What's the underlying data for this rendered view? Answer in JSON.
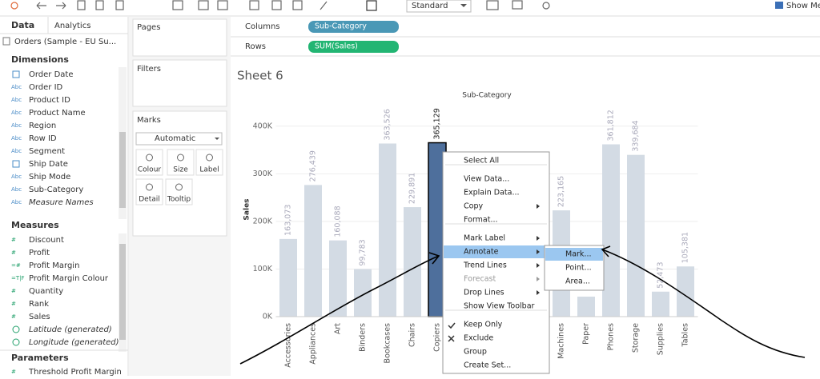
{
  "toolbar": {
    "view_size": "Standard",
    "show_me": "Show Me"
  },
  "sidebar": {
    "tabs": [
      "Data",
      "Analytics"
    ],
    "data_source": "Orders (Sample - EU Su...",
    "dimensions": {
      "title": "Dimensions",
      "fields": [
        {
          "name": "Order Date"
        },
        {
          "icon": "Abc",
          "name": "Order ID"
        },
        {
          "icon": "Abc",
          "name": "Product ID"
        },
        {
          "icon": "Abc",
          "name": "Product Name"
        },
        {
          "icon": "Abc",
          "name": "Region"
        },
        {
          "icon": "Abc",
          "name": "Row ID"
        },
        {
          "icon": "Abc",
          "name": "Segment"
        },
        {
          "name": "Ship Date"
        },
        {
          "icon": "Abc",
          "name": "Ship Mode"
        },
        {
          "icon": "Abc",
          "name": "Sub-Category"
        },
        {
          "icon": "Abc",
          "name": "Measure Names",
          "italic": true
        }
      ]
    },
    "measures": {
      "title": "Measures",
      "fields": [
        {
          "icon": "#",
          "name": "Discount"
        },
        {
          "icon": "#",
          "name": "Profit"
        },
        {
          "icon": "=#",
          "name": "Profit Margin"
        },
        {
          "icon": "=T|F",
          "name": "Profit Margin Colour"
        },
        {
          "icon": "#",
          "name": "Quantity"
        },
        {
          "icon": "#",
          "name": "Rank"
        },
        {
          "icon": "#",
          "name": "Sales"
        },
        {
          "name": "Latitude (generated)",
          "italic": true
        },
        {
          "name": "Longitude (generated)",
          "italic": true
        }
      ]
    },
    "parameters": {
      "title": "Parameters",
      "fields": [
        {
          "icon": "#",
          "name": "Threshold Profit Margin"
        }
      ]
    }
  },
  "cards": {
    "pages": "Pages",
    "filters": "Filters",
    "marks": "Marks",
    "mark_type": "Automatic",
    "buttons": [
      "Colour",
      "Size",
      "Label",
      "Detail",
      "Tooltip"
    ]
  },
  "shelves": {
    "columns": {
      "label": "Columns",
      "pill": "Sub-Category"
    },
    "rows": {
      "label": "Rows",
      "pill": "SUM(Sales)"
    }
  },
  "sheet_title": "Sheet 6",
  "chart_data": {
    "type": "bar",
    "header": "Sub-Category",
    "y_label": "Sales",
    "categories": [
      "Accessories",
      "Appliances",
      "Art",
      "Binders",
      "Bookcases",
      "Chairs",
      "Copiers",
      null,
      null,
      null,
      null,
      "Machines",
      "Paper",
      "Phones",
      "Storage",
      "Supplies",
      "Tables"
    ],
    "values": [
      163073,
      276439,
      160088,
      99783,
      363526,
      229891,
      365129,
      null,
      null,
      null,
      null,
      223165,
      42000,
      361812,
      339684,
      52473,
      105381
    ],
    "value_labels": [
      "163,073",
      "276,439",
      "160,088",
      "99,783",
      "363,526",
      "229,891",
      "365,129",
      null,
      null,
      null,
      null,
      "223,165",
      null,
      "361,812",
      "339,684",
      "52,473",
      "105,381"
    ],
    "colors": [
      "#d3dbe4",
      "#d3dbe4",
      "#d3dbe4",
      "#d3dbe4",
      "#d3dbe4",
      "#d3dbe4",
      "#4e6f9c",
      null,
      null,
      null,
      null,
      "#d3dbe4",
      "#d3dbe4",
      "#d3dbe4",
      "#d3dbe4",
      "#d3dbe4",
      "#d3dbe4"
    ],
    "ylim": [
      0,
      455000
    ],
    "yticks": [
      {
        "value": 0,
        "label": "0K"
      },
      {
        "value": 100000,
        "label": "100K"
      },
      {
        "value": 200000,
        "label": "200K"
      },
      {
        "value": 300000,
        "label": "300K"
      },
      {
        "value": 400000,
        "label": "400K"
      }
    ],
    "grid": true
  },
  "context_menu": {
    "groups": [
      [
        {
          "label": "Select All"
        }
      ],
      [
        {
          "label": "View Data..."
        },
        {
          "label": "Explain Data..."
        },
        {
          "label": "Copy",
          "arrow": true
        },
        {
          "label": "Format..."
        }
      ],
      [
        {
          "label": "Mark Label",
          "arrow": true
        },
        {
          "label": "Annotate",
          "arrow": true,
          "active": true
        },
        {
          "label": "Trend Lines",
          "arrow": true
        },
        {
          "label": "Forecast",
          "arrow": true,
          "disabled": true
        },
        {
          "label": "Drop Lines",
          "arrow": true
        },
        {
          "label": "Show View Toolbar"
        }
      ],
      [
        {
          "label": "Keep Only"
        },
        {
          "label": "Exclude"
        },
        {
          "label": "Group"
        },
        {
          "label": "Create Set..."
        }
      ]
    ],
    "submenu": [
      {
        "label": "Mark...",
        "active": true
      },
      {
        "label": "Point..."
      },
      {
        "label": "Area..."
      }
    ]
  }
}
